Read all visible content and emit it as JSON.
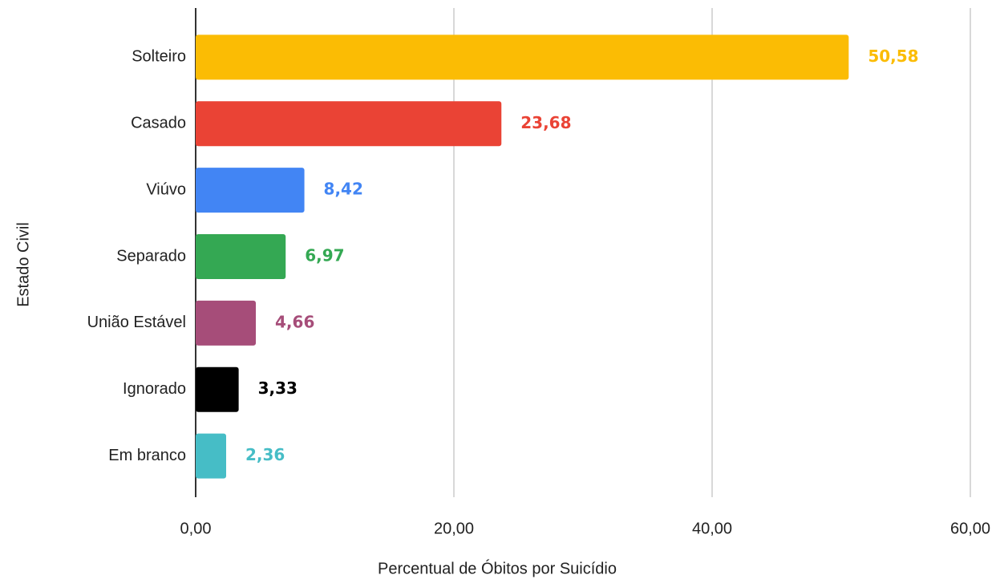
{
  "chart_data": {
    "type": "bar",
    "orientation": "horizontal",
    "xlabel": "Percentual de Óbitos por Suicídio",
    "ylabel": "Estado Civil",
    "categories": [
      "Solteiro",
      "Casado",
      "Viúvo",
      "Separado",
      "União Estável",
      "Ignorado",
      "Em branco"
    ],
    "values": [
      50.58,
      23.68,
      8.42,
      6.97,
      4.66,
      3.33,
      2.36
    ],
    "value_labels": [
      "50,58",
      "23,68",
      "8,42",
      "6,97",
      "4,66",
      "3,33",
      "2,36"
    ],
    "colors": [
      "#fbbc04",
      "#ea4335",
      "#4285f4",
      "#34a853",
      "#a64d79",
      "#000000",
      "#46bdc6"
    ],
    "xlim": [
      0,
      60
    ],
    "xticks": [
      {
        "value": 0,
        "label": "0,00"
      },
      {
        "value": 20,
        "label": "20,00"
      },
      {
        "value": 40,
        "label": "40,00"
      },
      {
        "value": 60,
        "label": "60,00"
      }
    ],
    "grid": true
  }
}
